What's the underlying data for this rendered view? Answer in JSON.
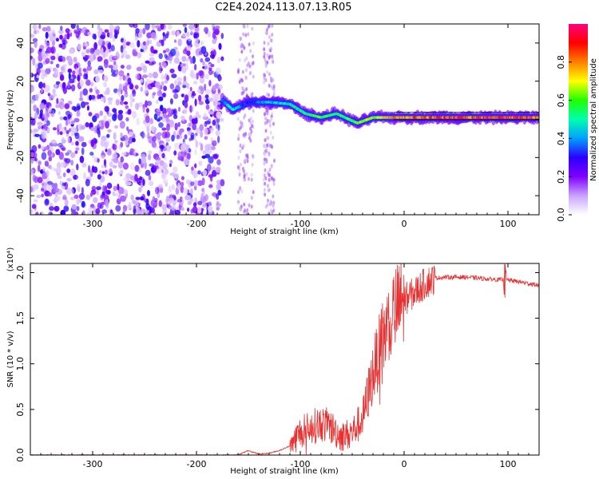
{
  "title": "C2E4.2024.113.07.13.R05",
  "chart_data": [
    {
      "type": "heatmap",
      "xlabel": "Height of straight line (km)",
      "ylabel": "Frequency (Hz)",
      "xlim": [
        -360,
        130
      ],
      "ylim": [
        -50,
        50
      ],
      "x_ticks": [
        -300,
        -200,
        -100,
        0,
        100
      ],
      "y_ticks": [
        -40,
        -20,
        0,
        20,
        40
      ],
      "colorbar": {
        "label": "Normalized spectral amplitude",
        "range": [
          0.0,
          1.0
        ],
        "ticks": [
          "0.0",
          "0.2",
          "0.4",
          "0.6",
          "0.8"
        ],
        "colors": [
          "#ffffff",
          "#c9a3ff",
          "#7f00ff",
          "#2b00ff",
          "#00a0ff",
          "#00ffb0",
          "#20ff00",
          "#ffff00",
          "#ff8000",
          "#ff0000",
          "#ff0080"
        ]
      },
      "noise_region_x": [
        -360,
        -175
      ],
      "signal_track": [
        {
          "x": -175,
          "y": 10,
          "amp": 0.4
        },
        {
          "x": -165,
          "y": 5,
          "amp": 0.5
        },
        {
          "x": -150,
          "y": 9,
          "amp": 0.3
        },
        {
          "x": -130,
          "y": 9,
          "amp": 0.45
        },
        {
          "x": -110,
          "y": 8,
          "amp": 0.5
        },
        {
          "x": -95,
          "y": 3,
          "amp": 0.55
        },
        {
          "x": -80,
          "y": 1,
          "amp": 0.6
        },
        {
          "x": -65,
          "y": 3,
          "amp": 0.55
        },
        {
          "x": -45,
          "y": -2,
          "amp": 0.65
        },
        {
          "x": -30,
          "y": 1,
          "amp": 0.7
        },
        {
          "x": -10,
          "y": 1,
          "amp": 0.8
        },
        {
          "x": 10,
          "y": 1,
          "amp": 0.85
        },
        {
          "x": 40,
          "y": 1,
          "amp": 0.9
        },
        {
          "x": 70,
          "y": 1,
          "amp": 0.9
        },
        {
          "x": 90,
          "y": 1,
          "amp": 0.95
        },
        {
          "x": 130,
          "y": 1,
          "amp": 0.9
        }
      ]
    },
    {
      "type": "line",
      "xlabel": "Height of straight line (km)",
      "ylabel": "SNR (10 * v/v)",
      "scale_label": "(x10⁴)",
      "xlim": [
        -360,
        130
      ],
      "ylim": [
        0.0,
        2.1
      ],
      "x_ticks": [
        -300,
        -200,
        -100,
        0,
        100
      ],
      "y_ticks": [
        "0.0",
        "0.5",
        "1.0",
        "1.5",
        "2.0"
      ],
      "color": "#e83030",
      "x": [
        -360,
        -300,
        -200,
        -160,
        -150,
        -140,
        -130,
        -120,
        -110,
        -100,
        -90,
        -80,
        -70,
        -60,
        -50,
        -40,
        -30,
        -20,
        -10,
        0,
        10,
        20,
        30,
        40,
        60,
        80,
        95,
        100,
        110,
        120,
        130
      ],
      "y": [
        0.0,
        0.0,
        0.0,
        0.0,
        0.05,
        0.01,
        0.02,
        0.05,
        0.1,
        0.25,
        0.3,
        0.35,
        0.3,
        0.2,
        0.25,
        0.4,
        0.9,
        1.3,
        1.55,
        1.7,
        1.78,
        1.88,
        1.94,
        1.95,
        1.95,
        1.93,
        1.92,
        1.92,
        1.9,
        1.88,
        1.86
      ]
    }
  ]
}
